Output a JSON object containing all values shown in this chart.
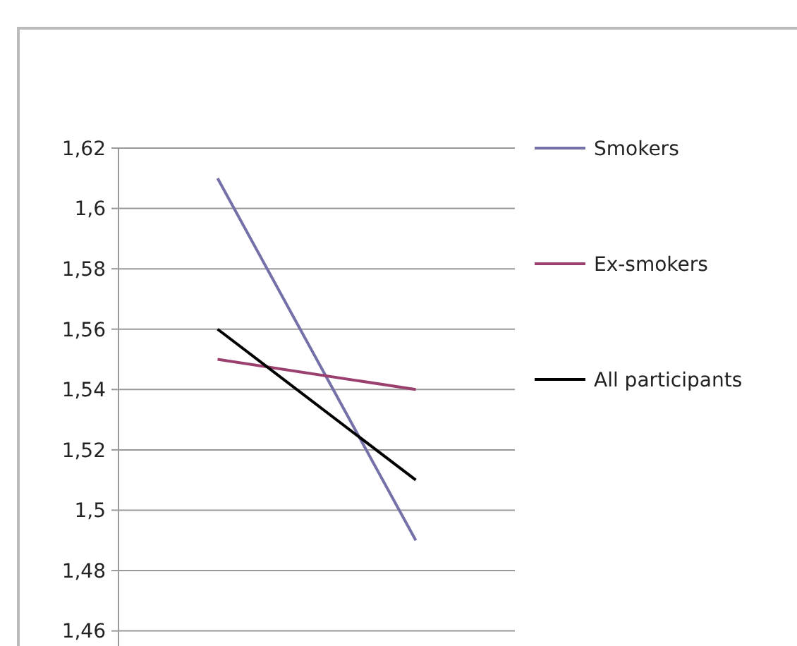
{
  "chart_data": {
    "type": "line",
    "categories": [
      null,
      null
    ],
    "series": [
      {
        "name": "Smokers",
        "color": "#7470a8",
        "values": [
          1.61,
          1.49
        ]
      },
      {
        "name": "Ex-smokers",
        "color": "#9b3f6e",
        "values": [
          1.55,
          1.54
        ]
      },
      {
        "name": "All participants",
        "color": "#000000",
        "values": [
          1.56,
          1.51
        ]
      }
    ],
    "ylim": [
      1.455,
      1.62
    ],
    "yticks": [
      {
        "value": 1.46,
        "label": "1,46"
      },
      {
        "value": 1.48,
        "label": "1,48"
      },
      {
        "value": 1.5,
        "label": "1,5"
      },
      {
        "value": 1.52,
        "label": "1,52"
      },
      {
        "value": 1.54,
        "label": "1,54"
      },
      {
        "value": 1.56,
        "label": "1,56"
      },
      {
        "value": 1.58,
        "label": "1,58"
      },
      {
        "value": 1.6,
        "label": "1,6"
      },
      {
        "value": 1.62,
        "label": "1,62"
      }
    ],
    "grid": "y",
    "legend": "right",
    "marker": "none",
    "line_style": "solid"
  }
}
